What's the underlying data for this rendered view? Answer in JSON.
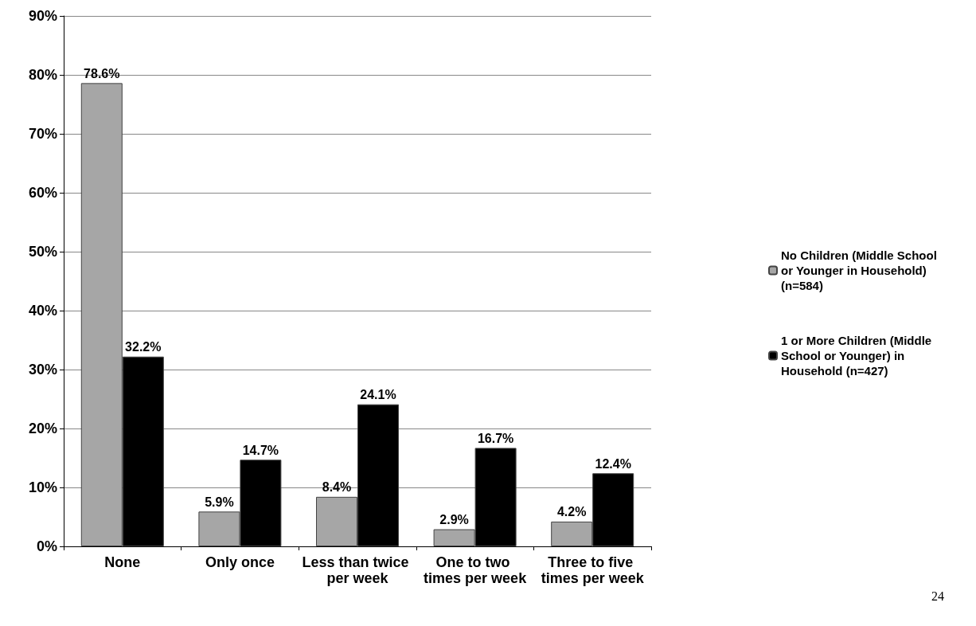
{
  "chart_data": {
    "type": "bar",
    "categories": [
      "None",
      "Only once",
      "Less than twice per week",
      "One to two times per week",
      "Three to five times per week"
    ],
    "series": [
      {
        "name": "No Children (Middle School or Younger in Household) (n=584)",
        "color": "#a6a6a6",
        "values": [
          78.6,
          5.9,
          8.4,
          2.9,
          4.2
        ],
        "value_labels": [
          "78.6%",
          "5.9%",
          "8.4%",
          "2.9%",
          "4.2%"
        ]
      },
      {
        "name": "1 or More Children (Middle School or Younger) in Household (n=427)",
        "color": "#000000",
        "values": [
          32.2,
          14.7,
          24.1,
          16.7,
          12.4
        ],
        "value_labels": [
          "32.2%",
          "14.7%",
          "24.1%",
          "16.7%",
          "12.4%"
        ]
      }
    ],
    "ylim": [
      0,
      90
    ],
    "yticks": [
      {
        "value": 0,
        "label": "0%"
      },
      {
        "value": 10,
        "label": "10%"
      },
      {
        "value": 20,
        "label": "20%"
      },
      {
        "value": 30,
        "label": "30%"
      },
      {
        "value": 40,
        "label": "40%"
      },
      {
        "value": 50,
        "label": "50%"
      },
      {
        "value": 60,
        "label": "60%"
      },
      {
        "value": 70,
        "label": "70%"
      },
      {
        "value": 80,
        "label": "80%"
      },
      {
        "value": 90,
        "label": "90%"
      }
    ],
    "grid": "y",
    "legend": "right",
    "annotations": [
      "24"
    ]
  }
}
